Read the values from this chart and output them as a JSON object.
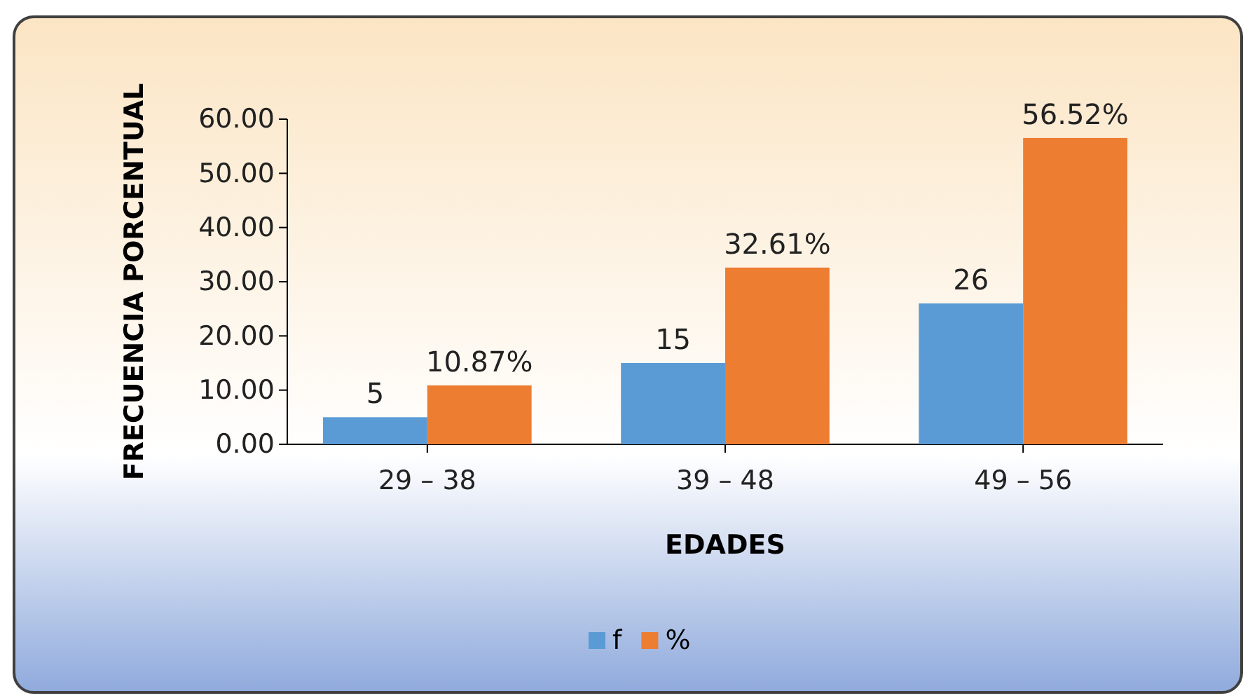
{
  "chart_data": {
    "type": "bar",
    "xlabel": "EDADES",
    "ylabel": "FRECUENCIA PORCENTUAL",
    "categories": [
      "29 – 38",
      "39 – 48",
      "49 – 56"
    ],
    "series": [
      {
        "name": "f",
        "color": "#5b9bd5",
        "values": [
          5,
          15,
          26
        ],
        "value_labels": [
          "5",
          "15",
          "26"
        ]
      },
      {
        "name": "%",
        "color": "#ed7d31",
        "values": [
          10.87,
          32.61,
          56.52
        ],
        "value_labels": [
          "10.87%",
          "32.61%",
          "56.52%"
        ]
      }
    ],
    "ylim": [
      0,
      60
    ],
    "yticks": [
      {
        "value": 0,
        "label": "0.00"
      },
      {
        "value": 10,
        "label": "10.00"
      },
      {
        "value": 20,
        "label": "20.00"
      },
      {
        "value": 30,
        "label": "30.00"
      },
      {
        "value": 40,
        "label": "40.00"
      },
      {
        "value": 50,
        "label": "50.00"
      },
      {
        "value": 60,
        "label": "60.00"
      }
    ],
    "grid": false,
    "legend": "bottom"
  }
}
